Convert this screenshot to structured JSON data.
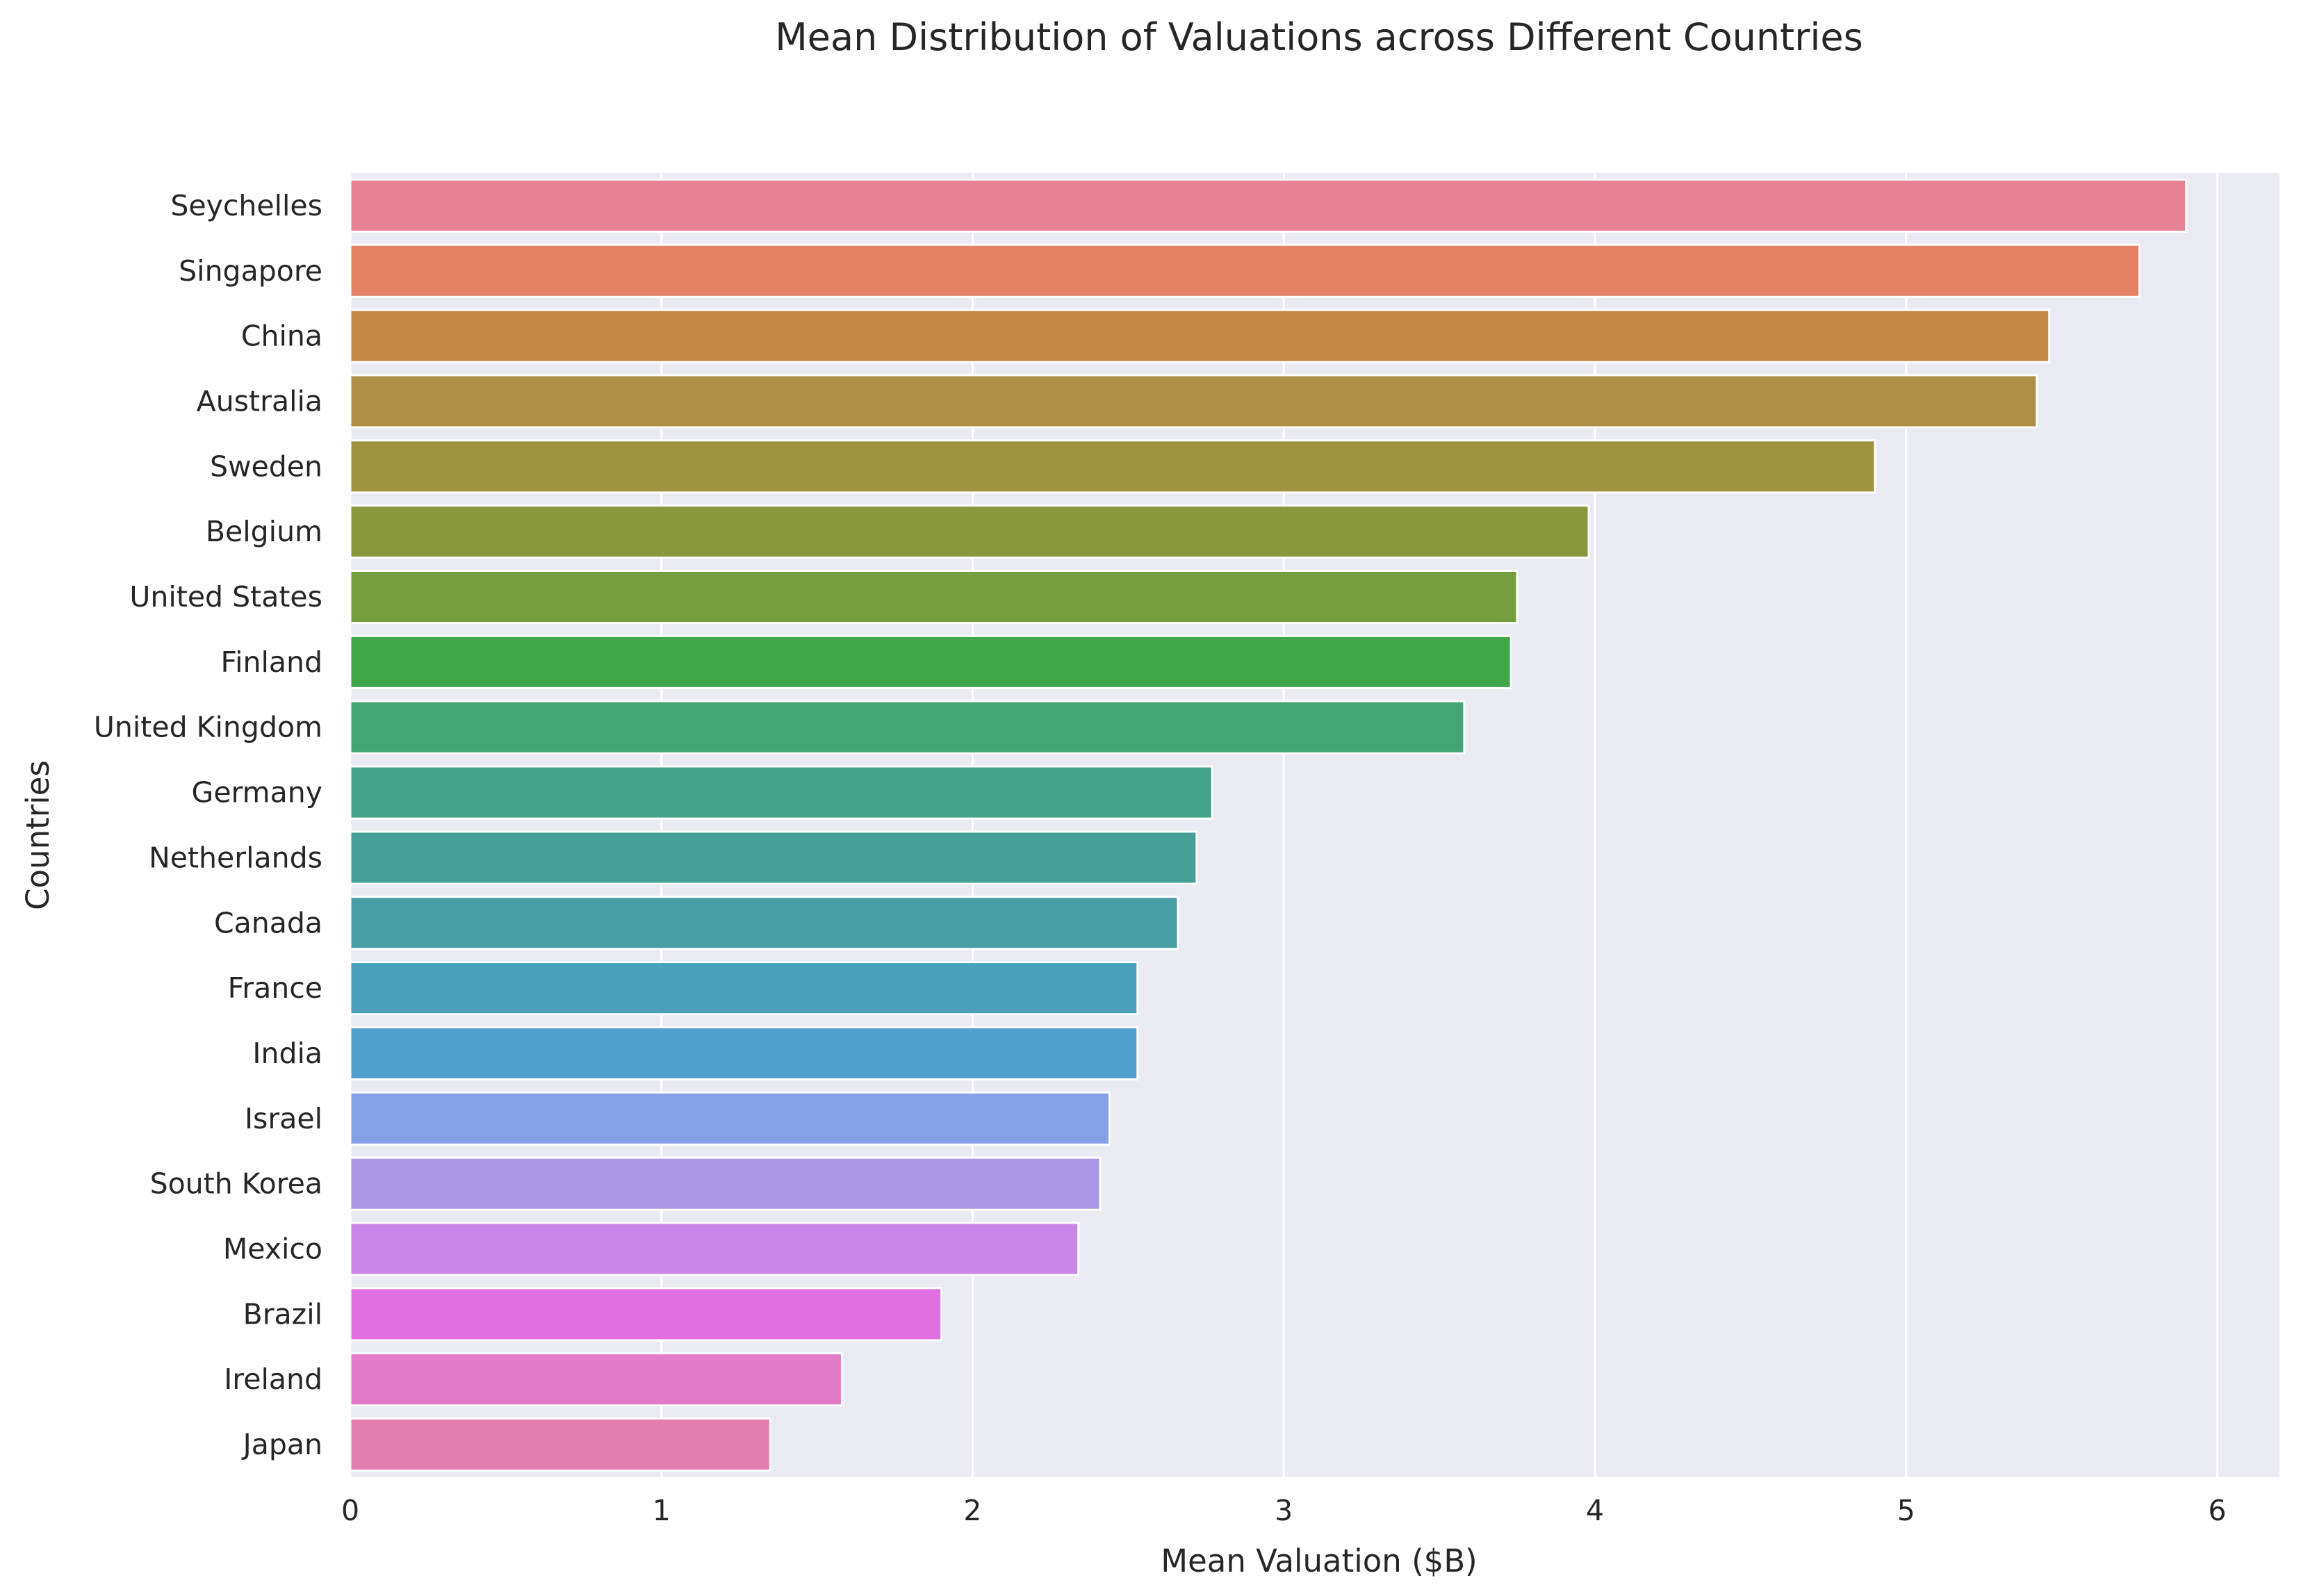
{
  "chart_data": {
    "type": "bar",
    "orientation": "horizontal",
    "title": "Mean Distribution of Valuations across Different Countries",
    "xlabel": "Mean Valuation ($B)",
    "ylabel": "Countries",
    "xlim": [
      0,
      6.2
    ],
    "xticks": [
      0,
      1,
      2,
      3,
      4,
      5,
      6
    ],
    "xtick_labels": [
      "0",
      "1",
      "2",
      "3",
      "4",
      "5",
      "6"
    ],
    "grid": true,
    "background": "#eaeaf2",
    "categories": [
      "Seychelles",
      "Singapore",
      "China",
      "Australia",
      "Sweden",
      "Belgium",
      "United States",
      "Finland",
      "United Kingdom",
      "Germany",
      "Netherlands",
      "Canada",
      "France",
      "India",
      "Israel",
      "South Korea",
      "Mexico",
      "Brazil",
      "Ireland",
      "Japan"
    ],
    "values": [
      5.9,
      5.75,
      5.46,
      5.42,
      4.9,
      3.98,
      3.75,
      3.73,
      3.58,
      2.77,
      2.72,
      2.66,
      2.53,
      2.53,
      2.44,
      2.41,
      2.34,
      1.9,
      1.58,
      1.35
    ],
    "colors": [
      "#e78194",
      "#e48266",
      "#c58848",
      "#ae8f47",
      "#9e9340",
      "#89983f",
      "#769e3e",
      "#41a649",
      "#44a574",
      "#44a18a",
      "#46a097",
      "#479fa5",
      "#4aa0bb",
      "#52a0cd",
      "#85a0e7",
      "#ab96e6",
      "#c887e6",
      "#e070e0",
      "#e37ac8",
      "#e37fae"
    ]
  }
}
